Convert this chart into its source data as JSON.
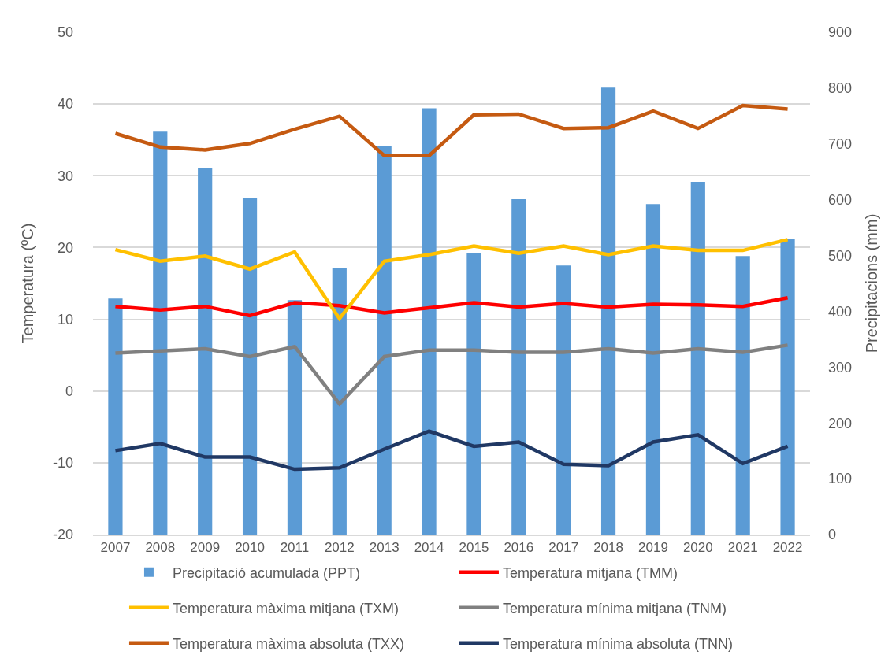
{
  "chart_data": {
    "type": "bar",
    "categories": [
      "2007",
      "2008",
      "2009",
      "2010",
      "2011",
      "2012",
      "2013",
      "2014",
      "2015",
      "2016",
      "2017",
      "2018",
      "2019",
      "2020",
      "2021",
      "2022"
    ],
    "series": [
      {
        "name": "Precipitació acumulada (PPT)",
        "axis": "y2",
        "color": "#5b9bd5",
        "values": [
          423,
          722,
          656,
          603,
          420,
          478,
          696,
          764,
          504,
          601,
          482,
          801,
          592,
          632,
          499,
          529
        ]
      },
      {
        "name": "Temperatura mitjana (TMM)",
        "type": "line",
        "color": "#ff0000",
        "values": [
          11.8,
          11.3,
          11.8,
          10.5,
          12.3,
          11.9,
          10.9,
          11.6,
          12.3,
          11.7,
          12.2,
          11.7,
          12.1,
          12.0,
          11.8,
          13.0
        ]
      },
      {
        "name": "Temperatura màxima mitjana (TXM)",
        "type": "line",
        "color": "#ffc000",
        "values": [
          19.7,
          18.1,
          18.8,
          17.0,
          19.4,
          10.1,
          18.1,
          19.0,
          20.2,
          19.2,
          20.2,
          19.0,
          20.2,
          19.6,
          19.6,
          21.1
        ]
      },
      {
        "name": "Temperatura mínima mitjana (TNM)",
        "type": "line",
        "color": "#808080",
        "values": [
          5.3,
          5.6,
          5.9,
          4.8,
          6.2,
          -1.8,
          4.8,
          5.7,
          5.7,
          5.4,
          5.4,
          5.9,
          5.3,
          5.9,
          5.4,
          6.4
        ]
      },
      {
        "name": "Temperatura màxima absoluta (TXX)",
        "type": "line",
        "color": "#c55a11",
        "values": [
          35.9,
          34.0,
          33.6,
          34.5,
          36.5,
          38.3,
          32.8,
          32.8,
          38.5,
          38.6,
          36.6,
          36.7,
          39.0,
          36.6,
          39.8,
          39.3
        ]
      },
      {
        "name": "Temperatura mínima absoluta (TNN)",
        "type": "line",
        "color": "#203864",
        "values": [
          -8.3,
          -7.3,
          -9.2,
          -9.2,
          -10.9,
          -10.7,
          -8.1,
          -5.6,
          -7.7,
          -7.1,
          -10.2,
          -10.4,
          -7.1,
          -6.1,
          -10.1,
          -7.7
        ]
      }
    ],
    "ylabel": "Temperatura (ºC)",
    "y2label": "Precipitacions (mm)",
    "ylim": [
      -20,
      50
    ],
    "yticks": [
      -20,
      -10,
      0,
      10,
      20,
      30,
      40,
      50
    ],
    "y2lim": [
      0,
      900
    ],
    "y2ticks": [
      0,
      100,
      200,
      300,
      400,
      500,
      600,
      700,
      800,
      900
    ],
    "grid": "y",
    "legend": "bottom"
  }
}
